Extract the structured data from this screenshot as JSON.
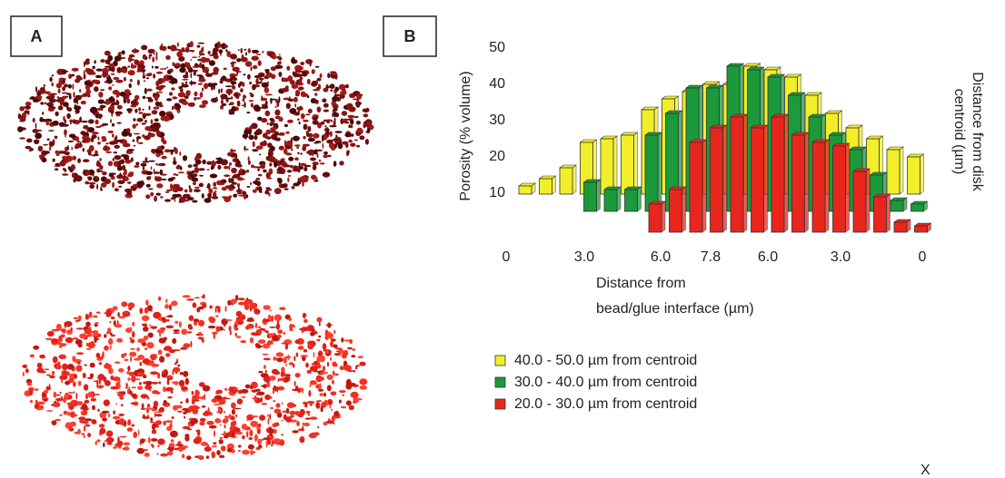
{
  "panel_labels": [
    "A",
    "B"
  ],
  "corner_mark": "X",
  "chart_data": {
    "type": "bar",
    "y_label": "Porosity (% volume)",
    "y2_label": [
      "Distance from disk",
      "centroid (µm)"
    ],
    "x_label": [
      "Distance from",
      "bead/glue interface (µm)"
    ],
    "x_axis_labels": [
      "0",
      "3.0",
      "6.0",
      "7.8",
      "6.0",
      "3.0",
      "0"
    ],
    "categories": [
      null,
      null,
      null,
      null,
      null,
      null,
      null,
      null,
      null,
      null,
      null,
      null,
      null,
      null,
      null,
      null,
      null,
      null,
      null,
      null
    ],
    "ylim": [
      0,
      50
    ],
    "yticks": [
      10,
      20,
      30,
      40,
      50
    ],
    "grid": false,
    "series": [
      {
        "name": "40.0 - 50.0 µm from centroid",
        "color": "#f2ee2a",
        "values": [
          12,
          14,
          17,
          24,
          25,
          26,
          33,
          36,
          38,
          40,
          40,
          45,
          44,
          42,
          37,
          32,
          28,
          25,
          22,
          20
        ]
      },
      {
        "name": "30.0 - 40.0 µm from centroid",
        "color": "#1a9a3a",
        "values": [
          null,
          null,
          null,
          13,
          11,
          11,
          26,
          32,
          39,
          39,
          45,
          44,
          42,
          37,
          31,
          26,
          22,
          15,
          8,
          7
        ]
      },
      {
        "name": "20.0 - 30.0 µm from centroid",
        "color": "#e8261e",
        "values": [
          null,
          null,
          null,
          null,
          null,
          null,
          7,
          11,
          24,
          28,
          31,
          28,
          31,
          26,
          24,
          23,
          16,
          9,
          2,
          1
        ]
      }
    ]
  }
}
